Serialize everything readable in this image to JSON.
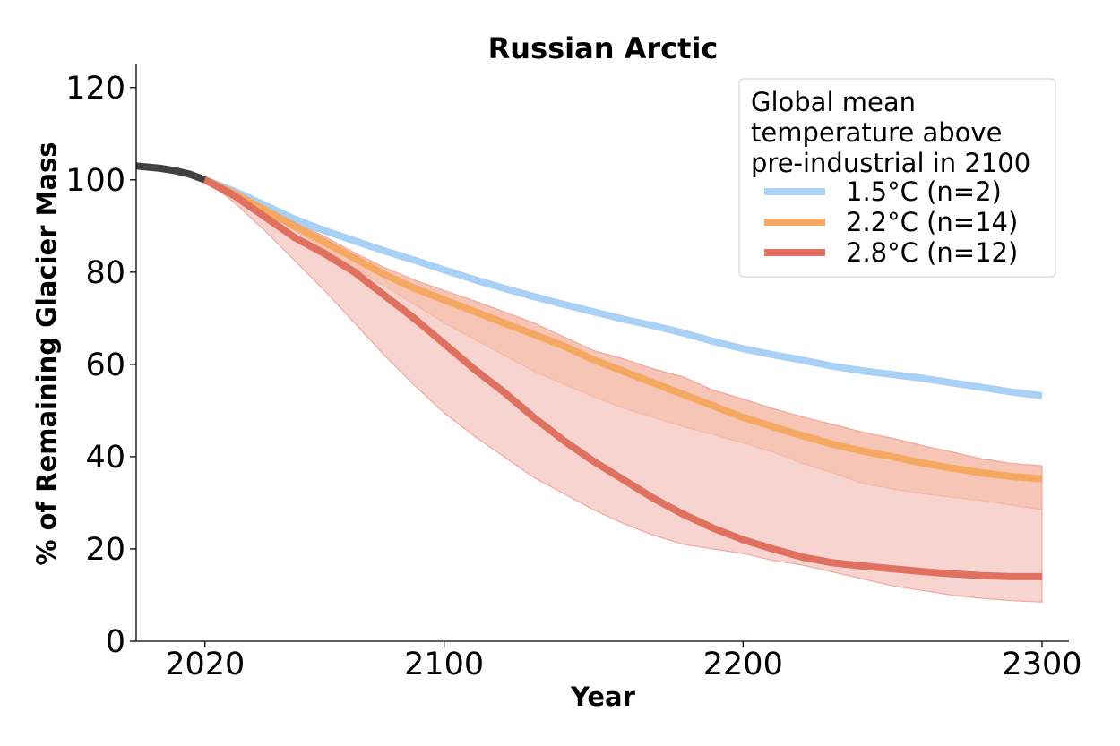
{
  "chart_data": {
    "type": "line",
    "title": "Russian Arctic",
    "xlabel": "Year",
    "ylabel": "% of Remaining Glacier Mass",
    "xlim": [
      1997,
      2309
    ],
    "ylim": [
      0,
      125
    ],
    "xticks": [
      2020,
      2100,
      2200,
      2300
    ],
    "yticks": [
      0,
      20,
      40,
      60,
      80,
      100,
      120
    ],
    "grid": false,
    "legend": {
      "title_lines": [
        "Global mean",
        "temperature above",
        "pre-industrial in 2100"
      ],
      "position": "top-right"
    },
    "historical": {
      "color": "#111111",
      "x": [
        1997,
        2005,
        2010,
        2015,
        2020
      ],
      "y": [
        103.0,
        102.5,
        102.0,
        101.2,
        100.0
      ]
    },
    "series": [
      {
        "name": "1.5°C (n=2)",
        "color": "#a9d0f5",
        "x": [
          2020,
          2030,
          2040,
          2050,
          2060,
          2070,
          2080,
          2090,
          2100,
          2110,
          2120,
          2130,
          2140,
          2150,
          2160,
          2170,
          2180,
          2190,
          2200,
          2210,
          2220,
          2230,
          2240,
          2250,
          2260,
          2270,
          2280,
          2290,
          2300
        ],
        "y": [
          100,
          97.5,
          94.5,
          91.5,
          89,
          86.8,
          84.6,
          82.6,
          80.5,
          78.4,
          76.5,
          74.7,
          73,
          71.4,
          69.8,
          68.4,
          66.8,
          65,
          63.4,
          62.1,
          60.9,
          59.6,
          58.6,
          57.8,
          57,
          56,
          55,
          54,
          53.2
        ],
        "band_lower": [
          100,
          97.3,
          94.2,
          91.2,
          88.7,
          86.5,
          84.3,
          82.3,
          80.2,
          78.1,
          76.2,
          74.4,
          72.7,
          71.1,
          69.5,
          68.1,
          66.5,
          64.7,
          63.1,
          61.8,
          60.6,
          59.3,
          58.3,
          57.5,
          56.7,
          55.7,
          54.7,
          53.7,
          52.8
        ],
        "band_upper": [
          100,
          97.7,
          94.8,
          91.8,
          89.3,
          87.1,
          84.9,
          82.9,
          80.8,
          78.7,
          76.8,
          75,
          73.3,
          71.7,
          70.1,
          68.7,
          67.1,
          65.3,
          63.7,
          62.4,
          61.2,
          59.9,
          58.9,
          58.1,
          57.3,
          56.3,
          55.3,
          54.3,
          53.6
        ]
      },
      {
        "name": "2.2°C (n=14)",
        "color": "#f5a862",
        "band_color": "#fbc89a",
        "x": [
          2020,
          2030,
          2040,
          2050,
          2060,
          2070,
          2080,
          2090,
          2100,
          2110,
          2120,
          2130,
          2140,
          2150,
          2160,
          2170,
          2180,
          2190,
          2200,
          2210,
          2220,
          2230,
          2240,
          2250,
          2260,
          2270,
          2280,
          2290,
          2300
        ],
        "y": [
          100,
          97,
          93.5,
          90,
          86.5,
          83,
          79.5,
          76.5,
          74,
          71.5,
          69,
          66.5,
          64,
          61,
          58.5,
          56,
          53.5,
          51,
          48.5,
          46.5,
          44.5,
          42.7,
          41.2,
          40,
          38.6,
          37.5,
          36.5,
          35.7,
          35.2
        ],
        "band_lower": [
          100,
          96.5,
          92.8,
          89,
          85,
          81,
          77,
          73,
          69,
          65.5,
          62,
          58.5,
          55.7,
          53,
          50.5,
          48.5,
          46.5,
          44.8,
          43,
          41,
          38.5,
          36.5,
          34.2,
          33,
          32,
          31.2,
          30.5,
          29.5,
          28.5
        ],
        "band_upper": [
          100,
          97.4,
          94.2,
          91,
          87.7,
          84.2,
          81,
          78.3,
          76,
          73.8,
          71.4,
          69,
          66,
          63,
          61.2,
          59,
          57.3,
          54.4,
          52.5,
          50.4,
          48.6,
          47,
          45.3,
          44,
          42.4,
          41,
          39.5,
          38.5,
          38
        ]
      },
      {
        "name": "2.8°C (n=12)",
        "color": "#e0705f",
        "band_color": "#f2a9a1",
        "x": [
          2020,
          2030,
          2040,
          2050,
          2060,
          2070,
          2080,
          2090,
          2100,
          2110,
          2120,
          2130,
          2140,
          2150,
          2160,
          2170,
          2180,
          2190,
          2200,
          2210,
          2220,
          2230,
          2240,
          2250,
          2260,
          2270,
          2280,
          2290,
          2300
        ],
        "y": [
          100,
          96.5,
          92,
          87.5,
          84,
          80,
          75,
          70,
          64.5,
          59,
          54,
          48.5,
          43.5,
          39,
          35,
          31,
          27.5,
          24.5,
          22,
          20,
          18.2,
          17,
          16.3,
          15.7,
          15.1,
          14.6,
          14.2,
          14.0,
          14.0
        ],
        "band_lower": [
          100,
          95,
          89,
          82.5,
          76,
          69,
          62,
          55.5,
          49.5,
          44.5,
          40,
          35.5,
          32,
          28.5,
          25.5,
          23,
          21,
          20,
          19,
          17.5,
          16.5,
          15,
          13.5,
          12,
          11,
          10,
          9.3,
          8.8,
          8.5
        ],
        "band_upper": [
          100,
          97.4,
          94.2,
          91,
          87.7,
          84.2,
          81,
          78.3,
          76,
          73.8,
          71.4,
          69,
          66,
          63,
          61.2,
          59,
          57.3,
          54.4,
          52.5,
          50.4,
          48.6,
          47,
          45.3,
          44,
          42.4,
          41,
          39.5,
          38.5,
          38
        ]
      }
    ]
  }
}
